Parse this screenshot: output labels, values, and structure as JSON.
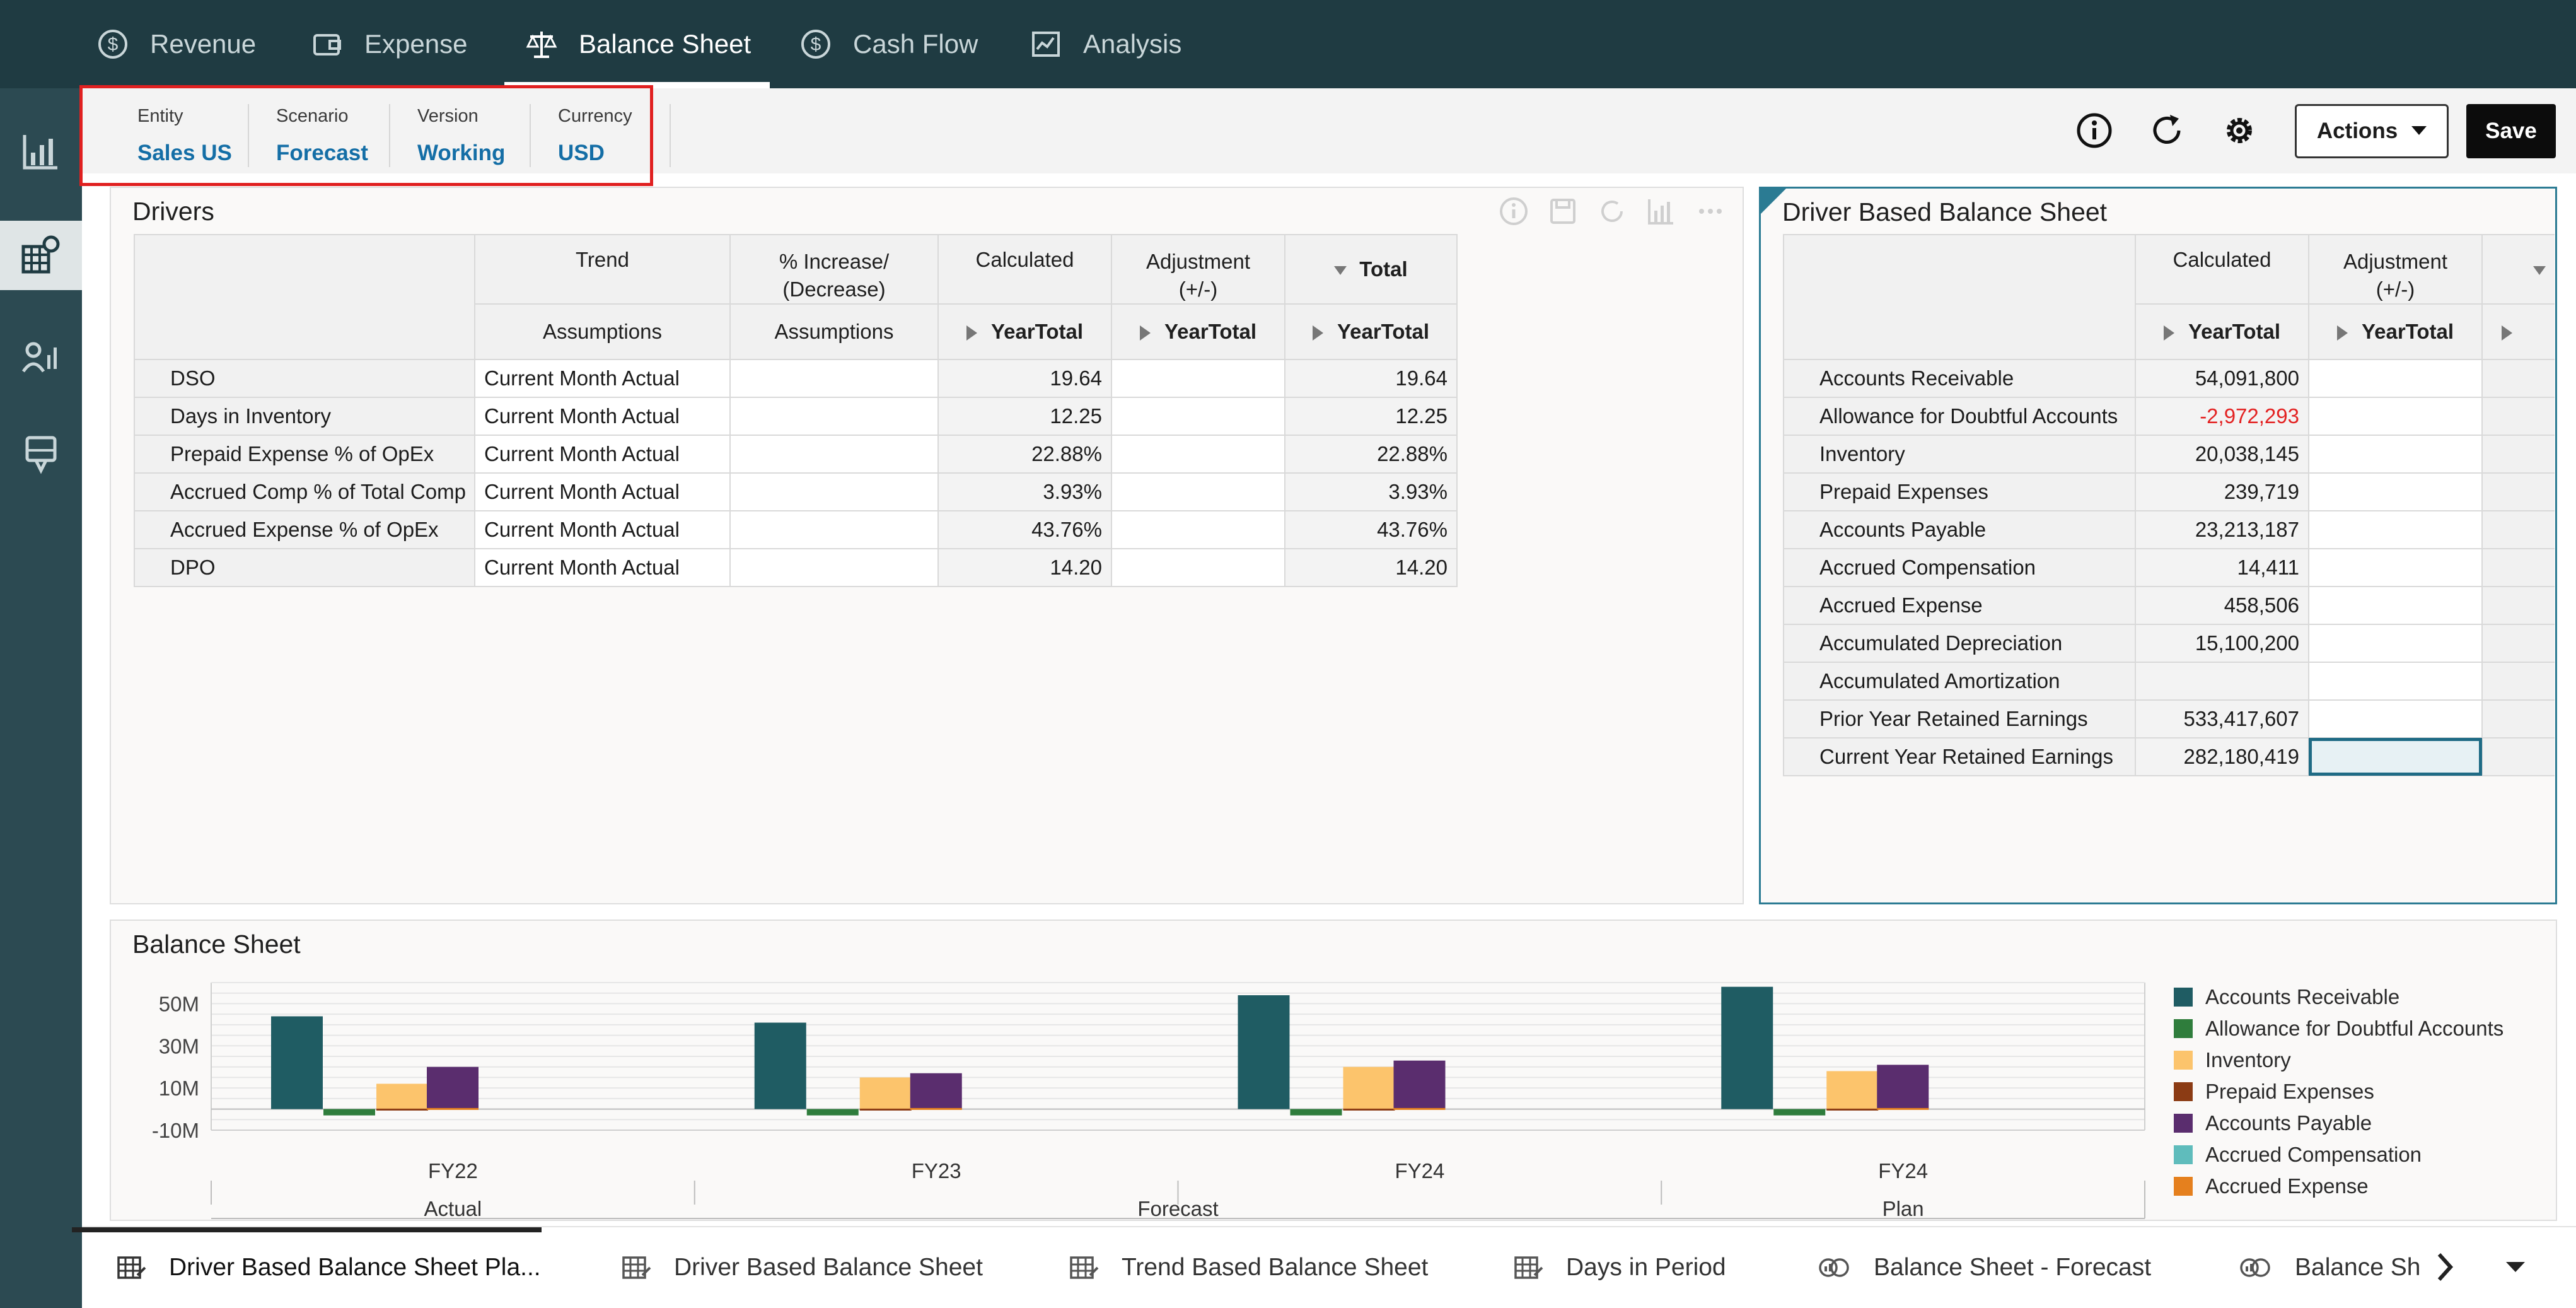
{
  "topnav": {
    "tabs": [
      {
        "label": "Revenue",
        "icon": "dollar-circle-icon"
      },
      {
        "label": "Expense",
        "icon": "wallet-icon"
      },
      {
        "label": "Balance Sheet",
        "icon": "scale-icon",
        "active": true
      },
      {
        "label": "Cash Flow",
        "icon": "dollar-circle-icon"
      },
      {
        "label": "Analysis",
        "icon": "report-icon"
      }
    ]
  },
  "leftrail": {
    "items": [
      {
        "icon": "bar-chart-icon"
      },
      {
        "icon": "grid-settings-icon",
        "active": true
      },
      {
        "icon": "user-chart-icon"
      },
      {
        "icon": "board-icon"
      }
    ]
  },
  "pov": {
    "items": [
      {
        "label": "Entity",
        "value": "Sales US"
      },
      {
        "label": "Scenario",
        "value": "Forecast"
      },
      {
        "label": "Version",
        "value": "Working"
      },
      {
        "label": "Currency",
        "value": "USD"
      }
    ]
  },
  "toolbar": {
    "actions_label": "Actions",
    "save_label": "Save",
    "icons": [
      "info-icon",
      "refresh-icon",
      "gear-icon"
    ]
  },
  "drivers": {
    "title": "Drivers",
    "col_headers_top": [
      "Trend",
      "% Increase/\n(Decrease)",
      "Calculated",
      "Adjustment\n(+/-)",
      "Total"
    ],
    "col_headers_sub": [
      "Assumptions",
      "Assumptions",
      "YearTotal",
      "YearTotal",
      "YearTotal"
    ],
    "rows": [
      {
        "label": "DSO",
        "trend": "Current Month Actual",
        "pct": "",
        "calculated": "19.64",
        "adjustment": "",
        "total": "19.64"
      },
      {
        "label": "Days in Inventory",
        "trend": "Current Month Actual",
        "pct": "",
        "calculated": "12.25",
        "adjustment": "",
        "total": "12.25"
      },
      {
        "label": "Prepaid Expense % of OpEx",
        "trend": "Current Month Actual",
        "pct": "",
        "calculated": "22.88%",
        "adjustment": "",
        "total": "22.88%"
      },
      {
        "label": "Accrued Comp % of Total Comp",
        "trend": "Current Month Actual",
        "pct": "",
        "calculated": "3.93%",
        "adjustment": "",
        "total": "3.93%"
      },
      {
        "label": "Accrued Expense % of OpEx",
        "trend": "Current Month Actual",
        "pct": "",
        "calculated": "43.76%",
        "adjustment": "",
        "total": "43.76%"
      },
      {
        "label": "DPO",
        "trend": "Current Month Actual",
        "pct": "",
        "calculated": "14.20",
        "adjustment": "",
        "total": "14.20"
      }
    ]
  },
  "dbbs": {
    "title": "Driver Based Balance Sheet",
    "col_headers_top": [
      "Calculated",
      "Adjustment\n(+/-)"
    ],
    "col_headers_sub": [
      "YearTotal",
      "YearTotal"
    ],
    "rows": [
      {
        "label": "Accounts Receivable",
        "calculated": "54,091,800"
      },
      {
        "label": "Allowance for Doubtful Accounts",
        "calculated": "-2,972,293",
        "negative": true
      },
      {
        "label": "Inventory",
        "calculated": "20,038,145"
      },
      {
        "label": "Prepaid Expenses",
        "calculated": "239,719"
      },
      {
        "label": "Accounts Payable",
        "calculated": "23,213,187"
      },
      {
        "label": "Accrued Compensation",
        "calculated": "14,411"
      },
      {
        "label": "Accrued Expense",
        "calculated": "458,506"
      },
      {
        "label": "Accumulated Depreciation",
        "calculated": "15,100,200"
      },
      {
        "label": "Accumulated Amortization",
        "calculated": ""
      },
      {
        "label": "Prior Year Retained Earnings",
        "calculated": "533,417,607"
      },
      {
        "label": "Current Year Retained Earnings",
        "calculated": "282,180,419"
      }
    ]
  },
  "chart_data": {
    "type": "bar",
    "title": "Balance Sheet",
    "categories": [
      "FY22",
      "FY23",
      "FY24",
      "FY24"
    ],
    "groups": [
      {
        "label": "Actual",
        "categories": [
          0
        ]
      },
      {
        "label": "Forecast",
        "categories": [
          1,
          2
        ]
      },
      {
        "label": "Plan",
        "categories": [
          3
        ]
      }
    ],
    "ylim": [
      -10,
      60
    ],
    "yticks": [
      {
        "value": 50,
        "label": "50M"
      },
      {
        "value": 30,
        "label": "30M"
      },
      {
        "value": 10,
        "label": "10M"
      },
      {
        "value": -10,
        "label": "-10M"
      }
    ],
    "legend_position": "right",
    "series": [
      {
        "name": "Accounts Receivable",
        "color": "#1f5c63",
        "values": [
          44,
          41,
          54,
          58
        ]
      },
      {
        "name": "Allowance for Doubtful Accounts",
        "color": "#2f7d3c",
        "values": [
          -3,
          -3,
          -3,
          -3
        ]
      },
      {
        "name": "Inventory",
        "color": "#fcc46c",
        "values": [
          12,
          15,
          20,
          18
        ]
      },
      {
        "name": "Prepaid Expenses",
        "color": "#8b3b14",
        "values": [
          0.2,
          0.2,
          0.2,
          0.2
        ]
      },
      {
        "name": "Accounts Payable",
        "color": "#5a2d6e",
        "values": [
          20,
          17,
          23,
          21
        ]
      },
      {
        "name": "Accrued Compensation",
        "color": "#5fbcbc",
        "values": [
          0,
          0,
          0,
          0
        ]
      },
      {
        "name": "Accrued Expense",
        "color": "#e5801e",
        "values": [
          0.5,
          0.5,
          0.5,
          0.5
        ]
      }
    ]
  },
  "bottomtabs": {
    "items": [
      {
        "label": "Driver Based Balance Sheet Pla...",
        "icon": "form-grid-icon",
        "active": true
      },
      {
        "label": "Driver Based Balance Sheet",
        "icon": "form-grid-icon"
      },
      {
        "label": "Trend Based Balance Sheet",
        "icon": "form-grid-icon"
      },
      {
        "label": "Days in Period",
        "icon": "form-grid-icon"
      },
      {
        "label": "Balance Sheet - Forecast",
        "icon": "chart-link-icon"
      },
      {
        "label": "Balance Sh",
        "icon": "chart-link-icon"
      }
    ]
  }
}
